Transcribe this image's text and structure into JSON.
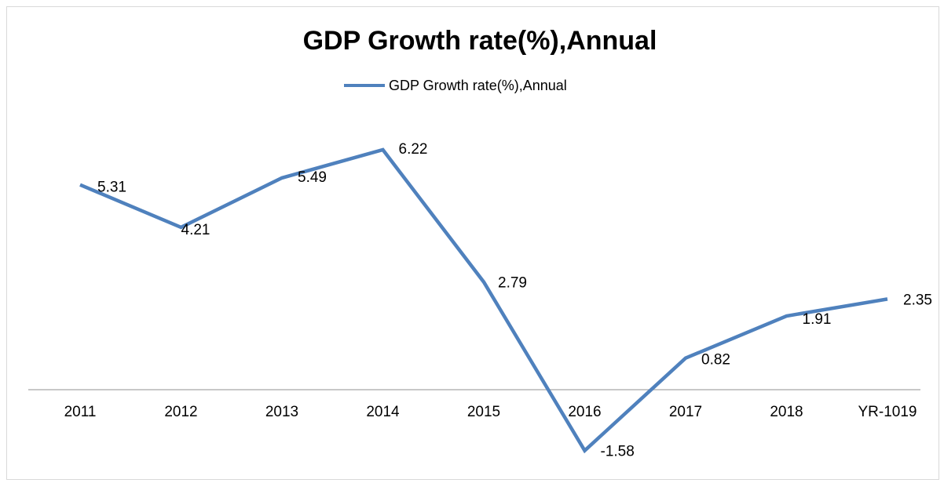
{
  "chart_data": {
    "type": "line",
    "title": "GDP Growth rate(%),Annual",
    "xlabel": "",
    "ylabel": "",
    "categories": [
      "2011",
      "2012",
      "2013",
      "2014",
      "2015",
      "2016",
      "2017",
      "2018",
      "YR-1019"
    ],
    "series": [
      {
        "name": "GDP Growth rate(%),Annual",
        "values": [
          5.31,
          4.21,
          5.49,
          6.22,
          2.79,
          -1.58,
          0.82,
          1.91,
          2.35
        ],
        "color": "#4f81bd"
      }
    ],
    "data_labels": [
      "5.31",
      "4.21",
      "5.49",
      "6.22",
      "2.79",
      "-1.58",
      "0.82",
      "1.91",
      "2.35"
    ],
    "legend_position": "top-center",
    "grid": false,
    "axis_color": "#a6a6a6"
  }
}
